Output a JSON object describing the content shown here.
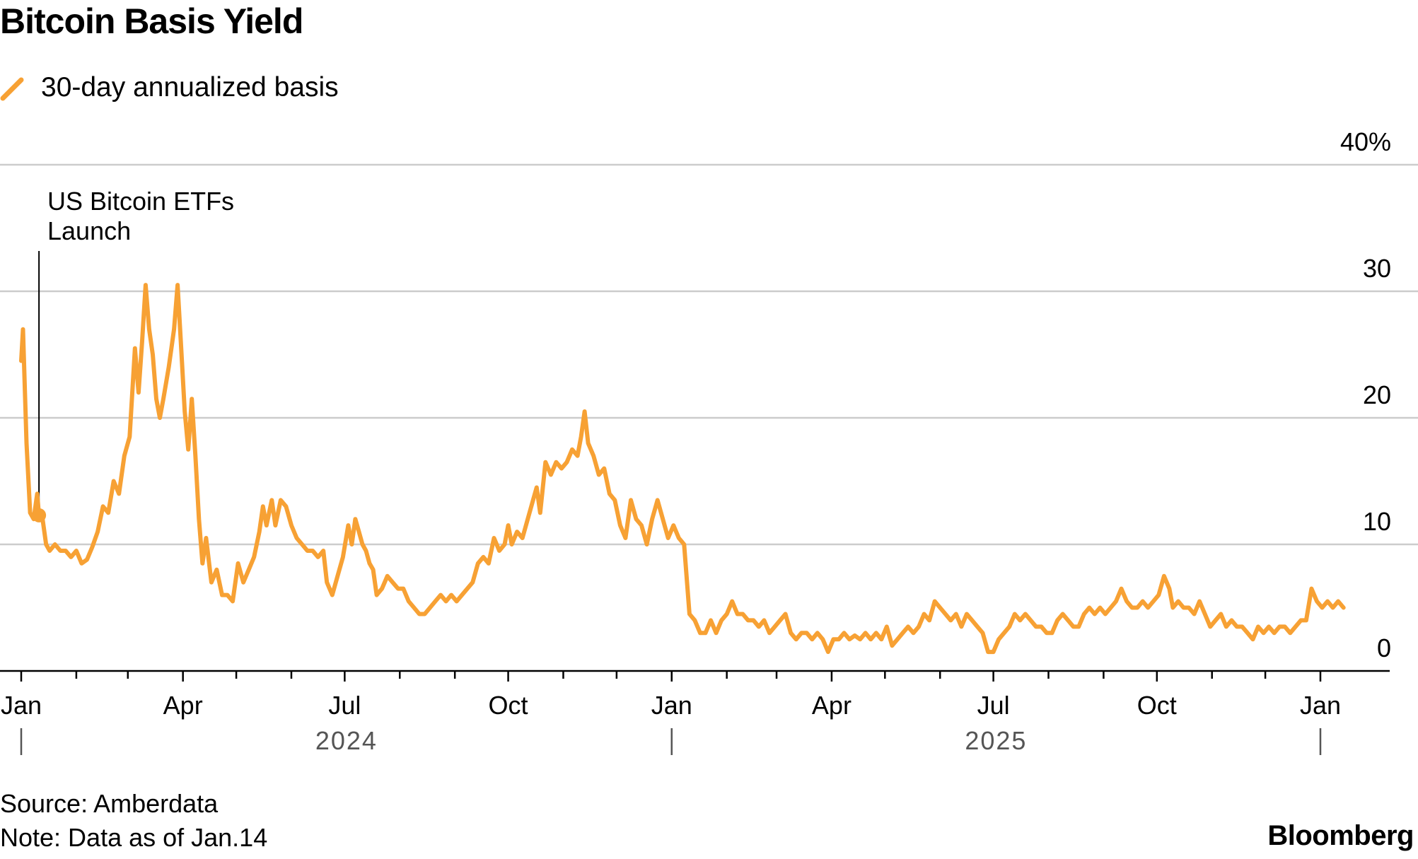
{
  "title": "Bitcoin Basis Yield",
  "legend": {
    "label": "30-day annualized basis",
    "color": "#F7A134",
    "icon": "diagonal-line-icon"
  },
  "chart_data": {
    "type": "line",
    "x_axis": {
      "ticks": [
        "Jan",
        "Apr",
        "Jul",
        "Oct",
        "Jan",
        "Apr",
        "Jul",
        "Oct",
        "Jan"
      ],
      "tick_dates": [
        "2024-01-01",
        "2024-04-01",
        "2024-07-01",
        "2024-10-01",
        "2025-01-01",
        "2025-04-01",
        "2025-07-01",
        "2025-10-01",
        "2026-01-01"
      ],
      "year_labels": [
        "2024",
        "2025"
      ]
    },
    "y_axis": {
      "ticks": [
        0,
        10,
        20,
        30,
        40
      ],
      "tick_labels": [
        "0",
        "10",
        "20",
        "30",
        "40%"
      ],
      "range": [
        0,
        40
      ]
    },
    "grid": true,
    "annotation": {
      "lines": [
        "US Bitcoin ETFs",
        "Launch"
      ],
      "date": "2024-01-11",
      "value": 12.3
    },
    "series": [
      {
        "name": "30-day annualized basis",
        "color": "#F7A134",
        "points": [
          [
            "2024-01-01",
            24.5
          ],
          [
            "2024-01-02",
            27.0
          ],
          [
            "2024-01-04",
            18.0
          ],
          [
            "2024-01-06",
            12.5
          ],
          [
            "2024-01-08",
            12.0
          ],
          [
            "2024-01-10",
            14.0
          ],
          [
            "2024-01-11",
            12.3
          ],
          [
            "2024-01-13",
            12.0
          ],
          [
            "2024-01-15",
            10.0
          ],
          [
            "2024-01-17",
            9.5
          ],
          [
            "2024-01-20",
            10.0
          ],
          [
            "2024-01-23",
            9.5
          ],
          [
            "2024-01-26",
            9.5
          ],
          [
            "2024-01-29",
            9.0
          ],
          [
            "2024-02-01",
            9.5
          ],
          [
            "2024-02-04",
            8.5
          ],
          [
            "2024-02-07",
            8.8
          ],
          [
            "2024-02-10",
            9.8
          ],
          [
            "2024-02-13",
            11.0
          ],
          [
            "2024-02-16",
            13.0
          ],
          [
            "2024-02-19",
            12.5
          ],
          [
            "2024-02-22",
            15.0
          ],
          [
            "2024-02-25",
            14.0
          ],
          [
            "2024-02-28",
            17.0
          ],
          [
            "2024-03-02",
            18.5
          ],
          [
            "2024-03-05",
            25.5
          ],
          [
            "2024-03-07",
            22.0
          ],
          [
            "2024-03-09",
            26.0
          ],
          [
            "2024-03-11",
            30.5
          ],
          [
            "2024-03-13",
            27.0
          ],
          [
            "2024-03-15",
            25.0
          ],
          [
            "2024-03-17",
            21.5
          ],
          [
            "2024-03-19",
            20.0
          ],
          [
            "2024-03-21",
            21.5
          ],
          [
            "2024-03-24",
            24.0
          ],
          [
            "2024-03-27",
            27.0
          ],
          [
            "2024-03-29",
            30.5
          ],
          [
            "2024-03-31",
            25.5
          ],
          [
            "2024-04-02",
            20.5
          ],
          [
            "2024-04-04",
            17.5
          ],
          [
            "2024-04-06",
            21.5
          ],
          [
            "2024-04-08",
            17.0
          ],
          [
            "2024-04-10",
            12.0
          ],
          [
            "2024-04-12",
            8.5
          ],
          [
            "2024-04-14",
            10.5
          ],
          [
            "2024-04-17",
            7.0
          ],
          [
            "2024-04-20",
            8.0
          ],
          [
            "2024-04-23",
            6.0
          ],
          [
            "2024-04-26",
            6.0
          ],
          [
            "2024-04-29",
            5.5
          ],
          [
            "2024-05-02",
            8.5
          ],
          [
            "2024-05-05",
            7.0
          ],
          [
            "2024-05-08",
            8.0
          ],
          [
            "2024-05-11",
            9.0
          ],
          [
            "2024-05-14",
            11.0
          ],
          [
            "2024-05-16",
            13.0
          ],
          [
            "2024-05-18",
            11.5
          ],
          [
            "2024-05-21",
            13.5
          ],
          [
            "2024-05-23",
            11.5
          ],
          [
            "2024-05-26",
            13.5
          ],
          [
            "2024-05-29",
            13.0
          ],
          [
            "2024-06-01",
            11.5
          ],
          [
            "2024-06-04",
            10.5
          ],
          [
            "2024-06-07",
            10.0
          ],
          [
            "2024-06-10",
            9.5
          ],
          [
            "2024-06-13",
            9.5
          ],
          [
            "2024-06-16",
            9.0
          ],
          [
            "2024-06-19",
            9.5
          ],
          [
            "2024-06-21",
            7.0
          ],
          [
            "2024-06-24",
            6.0
          ],
          [
            "2024-06-27",
            7.5
          ],
          [
            "2024-06-30",
            9.0
          ],
          [
            "2024-07-03",
            11.5
          ],
          [
            "2024-07-05",
            10.0
          ],
          [
            "2024-07-07",
            12.0
          ],
          [
            "2024-07-09",
            11.0
          ],
          [
            "2024-07-11",
            10.0
          ],
          [
            "2024-07-13",
            9.5
          ],
          [
            "2024-07-15",
            8.5
          ],
          [
            "2024-07-17",
            8.0
          ],
          [
            "2024-07-19",
            6.0
          ],
          [
            "2024-07-22",
            6.5
          ],
          [
            "2024-07-25",
            7.5
          ],
          [
            "2024-07-28",
            7.0
          ],
          [
            "2024-07-31",
            6.5
          ],
          [
            "2024-08-03",
            6.5
          ],
          [
            "2024-08-06",
            5.5
          ],
          [
            "2024-08-09",
            5.0
          ],
          [
            "2024-08-12",
            4.5
          ],
          [
            "2024-08-15",
            4.5
          ],
          [
            "2024-08-18",
            5.0
          ],
          [
            "2024-08-21",
            5.5
          ],
          [
            "2024-08-24",
            6.0
          ],
          [
            "2024-08-27",
            5.5
          ],
          [
            "2024-08-30",
            6.0
          ],
          [
            "2024-09-02",
            5.5
          ],
          [
            "2024-09-05",
            6.0
          ],
          [
            "2024-09-08",
            6.5
          ],
          [
            "2024-09-11",
            7.0
          ],
          [
            "2024-09-14",
            8.5
          ],
          [
            "2024-09-17",
            9.0
          ],
          [
            "2024-09-20",
            8.5
          ],
          [
            "2024-09-23",
            10.5
          ],
          [
            "2024-09-26",
            9.5
          ],
          [
            "2024-09-29",
            10.0
          ],
          [
            "2024-10-01",
            11.5
          ],
          [
            "2024-10-03",
            10.0
          ],
          [
            "2024-10-06",
            11.0
          ],
          [
            "2024-10-09",
            10.5
          ],
          [
            "2024-10-12",
            12.0
          ],
          [
            "2024-10-15",
            13.5
          ],
          [
            "2024-10-17",
            14.5
          ],
          [
            "2024-10-19",
            12.5
          ],
          [
            "2024-10-22",
            16.5
          ],
          [
            "2024-10-25",
            15.5
          ],
          [
            "2024-10-28",
            16.5
          ],
          [
            "2024-10-31",
            16.0
          ],
          [
            "2024-11-03",
            16.5
          ],
          [
            "2024-11-06",
            17.5
          ],
          [
            "2024-11-09",
            17.0
          ],
          [
            "2024-11-11",
            18.5
          ],
          [
            "2024-11-13",
            20.5
          ],
          [
            "2024-11-15",
            18.0
          ],
          [
            "2024-11-18",
            17.0
          ],
          [
            "2024-11-21",
            15.5
          ],
          [
            "2024-11-24",
            16.0
          ],
          [
            "2024-11-27",
            14.0
          ],
          [
            "2024-11-30",
            13.5
          ],
          [
            "2024-12-03",
            11.5
          ],
          [
            "2024-12-06",
            10.5
          ],
          [
            "2024-12-09",
            13.5
          ],
          [
            "2024-12-12",
            12.0
          ],
          [
            "2024-12-15",
            11.5
          ],
          [
            "2024-12-18",
            10.0
          ],
          [
            "2024-12-21",
            12.0
          ],
          [
            "2024-12-24",
            13.5
          ],
          [
            "2024-12-27",
            12.0
          ],
          [
            "2024-12-30",
            10.5
          ],
          [
            "2025-01-02",
            11.5
          ],
          [
            "2025-01-05",
            10.5
          ],
          [
            "2025-01-08",
            10.0
          ],
          [
            "2025-01-11",
            4.5
          ],
          [
            "2025-01-14",
            4.0
          ],
          [
            "2025-01-17",
            3.0
          ],
          [
            "2025-01-20",
            3.0
          ],
          [
            "2025-01-23",
            4.0
          ],
          [
            "2025-01-26",
            3.0
          ],
          [
            "2025-01-29",
            4.0
          ],
          [
            "2025-02-01",
            4.5
          ],
          [
            "2025-02-04",
            5.5
          ],
          [
            "2025-02-07",
            4.5
          ],
          [
            "2025-02-10",
            4.5
          ],
          [
            "2025-02-13",
            4.0
          ],
          [
            "2025-02-16",
            4.0
          ],
          [
            "2025-02-19",
            3.5
          ],
          [
            "2025-02-22",
            4.0
          ],
          [
            "2025-02-25",
            3.0
          ],
          [
            "2025-02-28",
            3.5
          ],
          [
            "2025-03-03",
            4.0
          ],
          [
            "2025-03-06",
            4.5
          ],
          [
            "2025-03-09",
            3.0
          ],
          [
            "2025-03-12",
            2.5
          ],
          [
            "2025-03-15",
            3.0
          ],
          [
            "2025-03-18",
            3.0
          ],
          [
            "2025-03-21",
            2.5
          ],
          [
            "2025-03-24",
            3.0
          ],
          [
            "2025-03-27",
            2.5
          ],
          [
            "2025-03-30",
            1.5
          ],
          [
            "2025-04-02",
            2.5
          ],
          [
            "2025-04-05",
            2.5
          ],
          [
            "2025-04-08",
            3.0
          ],
          [
            "2025-04-11",
            2.5
          ],
          [
            "2025-04-14",
            2.8
          ],
          [
            "2025-04-17",
            2.5
          ],
          [
            "2025-04-20",
            3.0
          ],
          [
            "2025-04-23",
            2.5
          ],
          [
            "2025-04-26",
            3.0
          ],
          [
            "2025-04-29",
            2.5
          ],
          [
            "2025-05-02",
            3.5
          ],
          [
            "2025-05-05",
            2.0
          ],
          [
            "2025-05-08",
            2.5
          ],
          [
            "2025-05-11",
            3.0
          ],
          [
            "2025-05-14",
            3.5
          ],
          [
            "2025-05-17",
            3.0
          ],
          [
            "2025-05-20",
            3.5
          ],
          [
            "2025-05-23",
            4.5
          ],
          [
            "2025-05-26",
            4.0
          ],
          [
            "2025-05-29",
            5.5
          ],
          [
            "2025-06-01",
            5.0
          ],
          [
            "2025-06-04",
            4.5
          ],
          [
            "2025-06-07",
            4.0
          ],
          [
            "2025-06-10",
            4.5
          ],
          [
            "2025-06-13",
            3.5
          ],
          [
            "2025-06-16",
            4.5
          ],
          [
            "2025-06-19",
            4.0
          ],
          [
            "2025-06-22",
            3.5
          ],
          [
            "2025-06-25",
            3.0
          ],
          [
            "2025-06-28",
            1.5
          ],
          [
            "2025-07-01",
            1.5
          ],
          [
            "2025-07-04",
            2.5
          ],
          [
            "2025-07-07",
            3.0
          ],
          [
            "2025-07-10",
            3.5
          ],
          [
            "2025-07-13",
            4.5
          ],
          [
            "2025-07-16",
            4.0
          ],
          [
            "2025-07-19",
            4.5
          ],
          [
            "2025-07-22",
            4.0
          ],
          [
            "2025-07-25",
            3.5
          ],
          [
            "2025-07-28",
            3.5
          ],
          [
            "2025-07-31",
            3.0
          ],
          [
            "2025-08-03",
            3.0
          ],
          [
            "2025-08-06",
            4.0
          ],
          [
            "2025-08-09",
            4.5
          ],
          [
            "2025-08-12",
            4.0
          ],
          [
            "2025-08-15",
            3.5
          ],
          [
            "2025-08-18",
            3.5
          ],
          [
            "2025-08-21",
            4.5
          ],
          [
            "2025-08-24",
            5.0
          ],
          [
            "2025-08-27",
            4.5
          ],
          [
            "2025-08-30",
            5.0
          ],
          [
            "2025-09-02",
            4.5
          ],
          [
            "2025-09-05",
            5.0
          ],
          [
            "2025-09-08",
            5.5
          ],
          [
            "2025-09-11",
            6.5
          ],
          [
            "2025-09-14",
            5.5
          ],
          [
            "2025-09-17",
            5.0
          ],
          [
            "2025-09-20",
            5.0
          ],
          [
            "2025-09-23",
            5.5
          ],
          [
            "2025-09-26",
            5.0
          ],
          [
            "2025-09-29",
            5.5
          ],
          [
            "2025-10-02",
            6.0
          ],
          [
            "2025-10-05",
            7.5
          ],
          [
            "2025-10-08",
            6.5
          ],
          [
            "2025-10-10",
            5.0
          ],
          [
            "2025-10-13",
            5.5
          ],
          [
            "2025-10-16",
            5.0
          ],
          [
            "2025-10-19",
            5.0
          ],
          [
            "2025-10-22",
            4.5
          ],
          [
            "2025-10-25",
            5.5
          ],
          [
            "2025-10-28",
            4.5
          ],
          [
            "2025-10-31",
            3.5
          ],
          [
            "2025-11-03",
            4.0
          ],
          [
            "2025-11-06",
            4.5
          ],
          [
            "2025-11-09",
            3.5
          ],
          [
            "2025-11-12",
            4.0
          ],
          [
            "2025-11-15",
            3.5
          ],
          [
            "2025-11-18",
            3.5
          ],
          [
            "2025-11-21",
            3.0
          ],
          [
            "2025-11-24",
            2.5
          ],
          [
            "2025-11-27",
            3.5
          ],
          [
            "2025-11-30",
            3.0
          ],
          [
            "2025-12-03",
            3.5
          ],
          [
            "2025-12-06",
            3.0
          ],
          [
            "2025-12-09",
            3.5
          ],
          [
            "2025-12-12",
            3.5
          ],
          [
            "2025-12-15",
            3.0
          ],
          [
            "2025-12-18",
            3.5
          ],
          [
            "2025-12-21",
            4.0
          ],
          [
            "2025-12-24",
            4.0
          ],
          [
            "2025-12-27",
            6.5
          ],
          [
            "2025-12-30",
            5.5
          ],
          [
            "2026-01-02",
            5.0
          ],
          [
            "2026-01-05",
            5.5
          ],
          [
            "2026-01-08",
            5.0
          ],
          [
            "2026-01-11",
            5.5
          ],
          [
            "2026-01-14",
            5.0
          ]
        ]
      }
    ]
  },
  "footer": {
    "source": "Source: Amberdata",
    "note": "Note: Data as of Jan.14",
    "brand": "Bloomberg"
  }
}
